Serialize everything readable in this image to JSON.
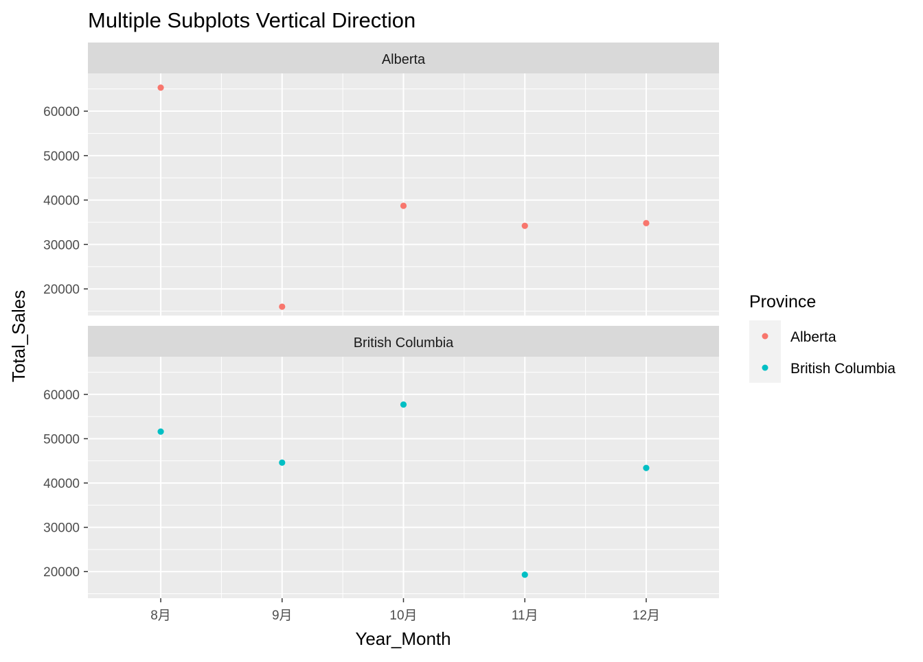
{
  "chart_data": {
    "type": "scatter",
    "title": "Multiple Subplots Vertical Direction",
    "xlabel": "Year_Month",
    "ylabel": "Total_Sales",
    "categories": [
      "8月",
      "9月",
      "10月",
      "11月",
      "12月"
    ],
    "ylim": [
      14000,
      68500
    ],
    "yticks": [
      20000,
      30000,
      40000,
      50000,
      60000
    ],
    "grid": true,
    "legend": {
      "title": "Province",
      "position": "right",
      "entries": [
        "Alberta",
        "British Columbia"
      ]
    },
    "panels": [
      {
        "strip": "Alberta",
        "series": "Alberta",
        "color": "#F8766D",
        "values": [
          65300,
          16000,
          38700,
          34200,
          34800
        ]
      },
      {
        "strip": "British Columbia",
        "series": "British Columbia",
        "color": "#00BFC4",
        "values": [
          51600,
          44600,
          57700,
          19300,
          43400
        ]
      }
    ]
  },
  "colors": {
    "panel_background": "#EBEBEB",
    "strip_background": "#D9D9D9",
    "grid": "#FFFFFF",
    "legend_key_background": "#F2F2F2"
  }
}
